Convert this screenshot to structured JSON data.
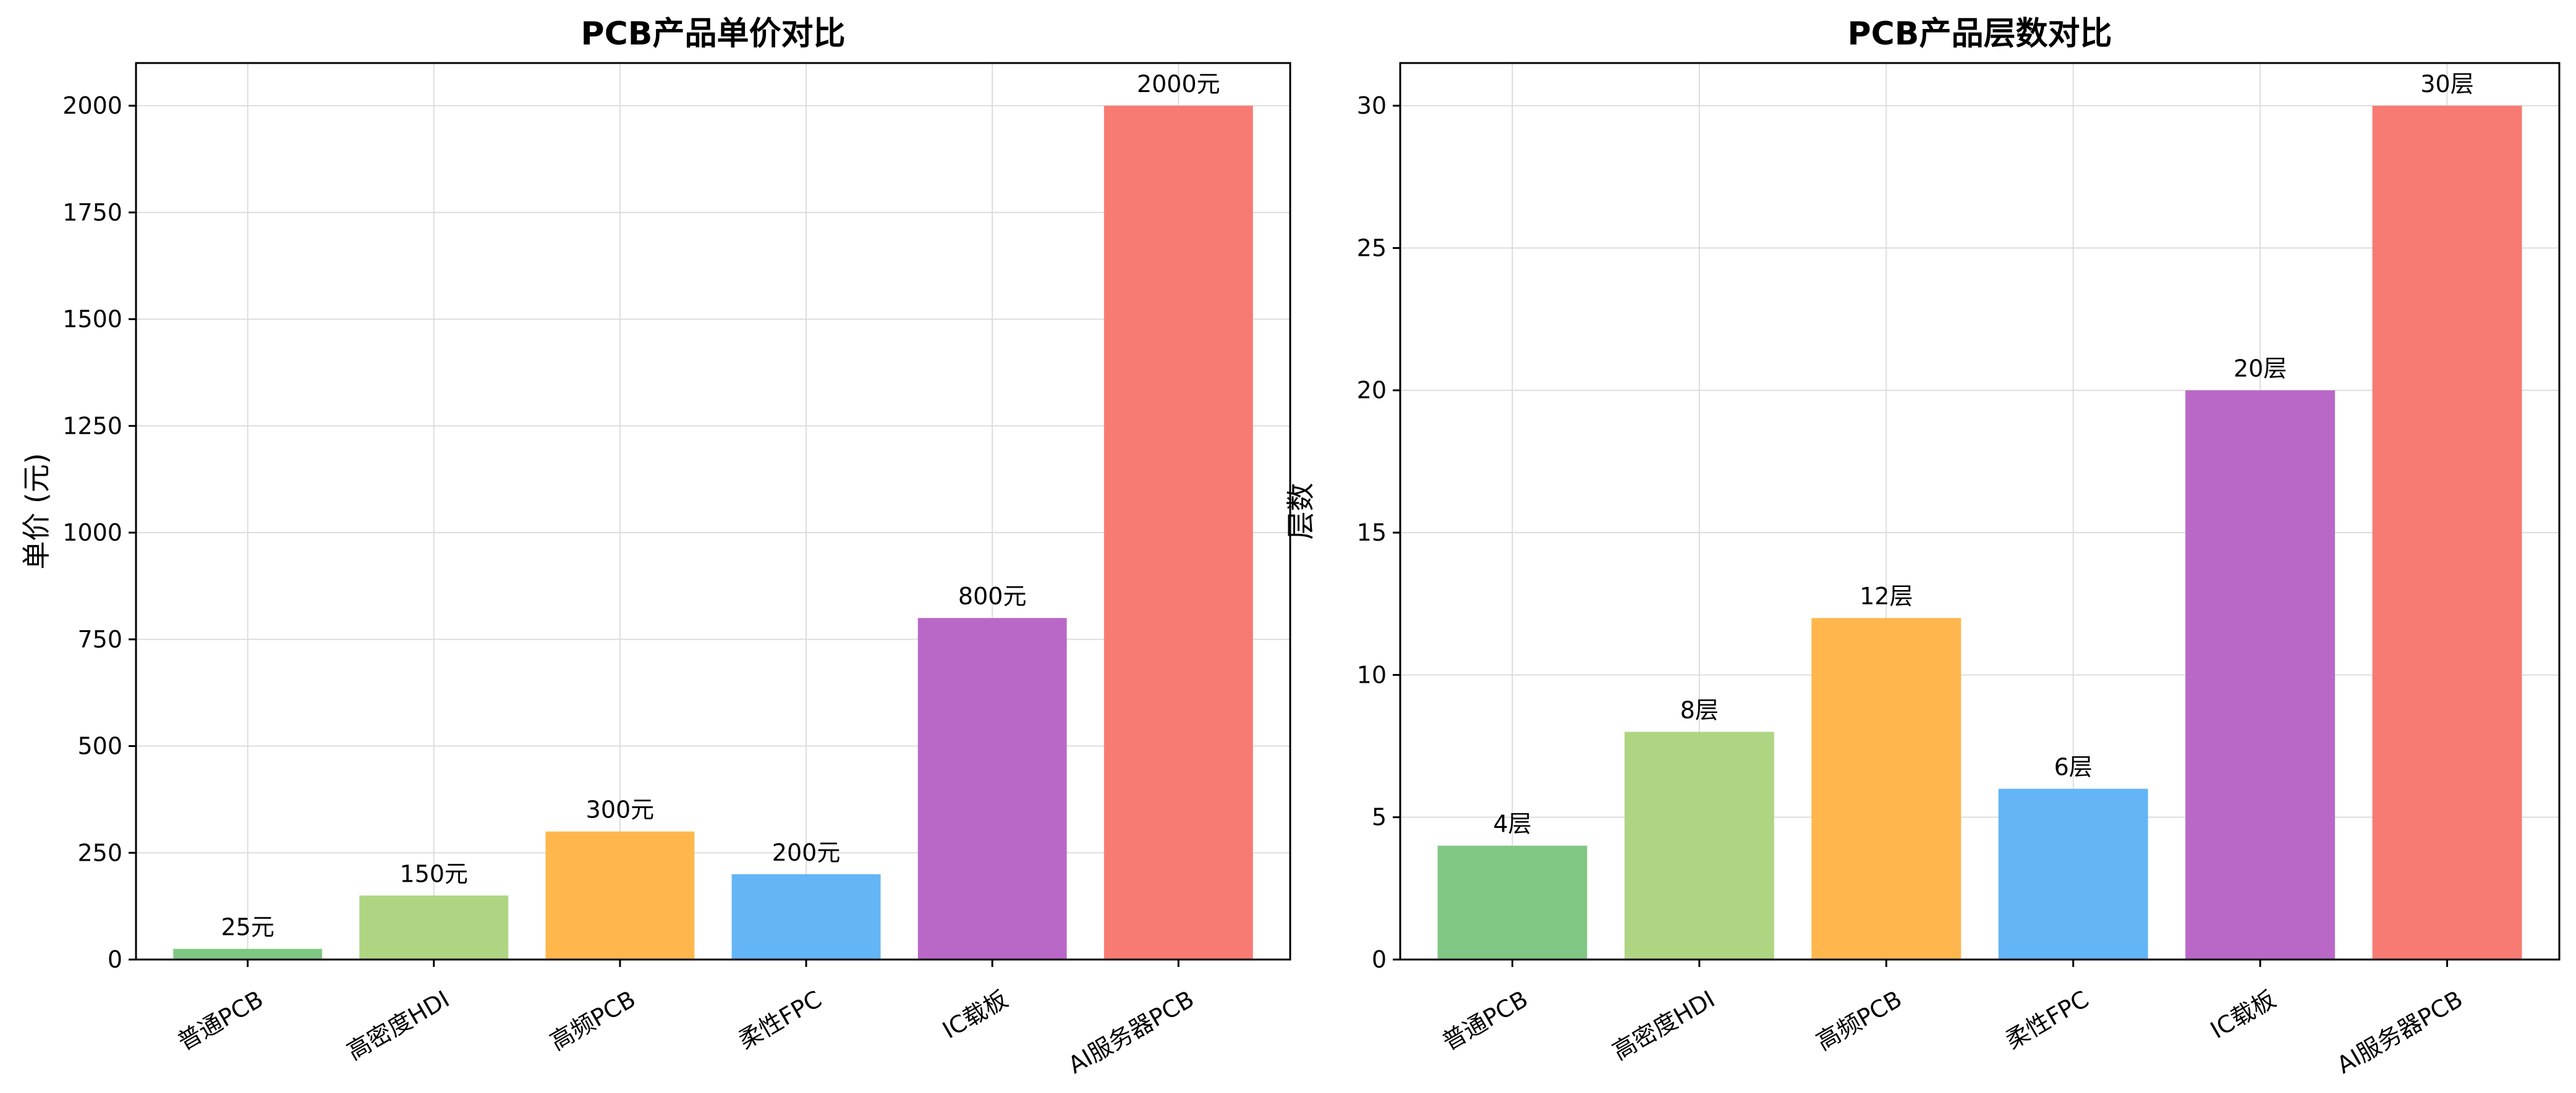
{
  "chart_data": [
    {
      "type": "bar",
      "title": "PCB产品单价对比",
      "xlabel": "",
      "ylabel": "单价 (元)",
      "categories": [
        "普通PCB",
        "高密度HDI",
        "高频PCB",
        "柔性FPC",
        "IC载板",
        "AI服务器PCB"
      ],
      "values": [
        25,
        150,
        300,
        200,
        800,
        2000
      ],
      "data_labels": [
        "25元",
        "150元",
        "300元",
        "200元",
        "800元",
        "2000元"
      ],
      "ylim": [
        0,
        2100
      ],
      "yticks": [
        0,
        250,
        500,
        750,
        1000,
        1250,
        1500,
        1750,
        2000
      ],
      "colors": [
        "#81c784",
        "#aed581",
        "#ffb74d",
        "#64b5f6",
        "#ba68c8",
        "#f77b72"
      ],
      "grid": true
    },
    {
      "type": "bar",
      "title": "PCB产品层数对比",
      "xlabel": "",
      "ylabel": "层数",
      "categories": [
        "普通PCB",
        "高密度HDI",
        "高频PCB",
        "柔性FPC",
        "IC载板",
        "AI服务器PCB"
      ],
      "values": [
        4,
        8,
        12,
        6,
        20,
        30
      ],
      "data_labels": [
        "4层",
        "8层",
        "12层",
        "6层",
        "20层",
        "30层"
      ],
      "ylim": [
        0,
        31.5
      ],
      "yticks": [
        0,
        5,
        10,
        15,
        20,
        25,
        30
      ],
      "colors": [
        "#81c784",
        "#aed581",
        "#ffb74d",
        "#64b5f6",
        "#ba68c8",
        "#f77b72"
      ],
      "grid": true
    }
  ]
}
